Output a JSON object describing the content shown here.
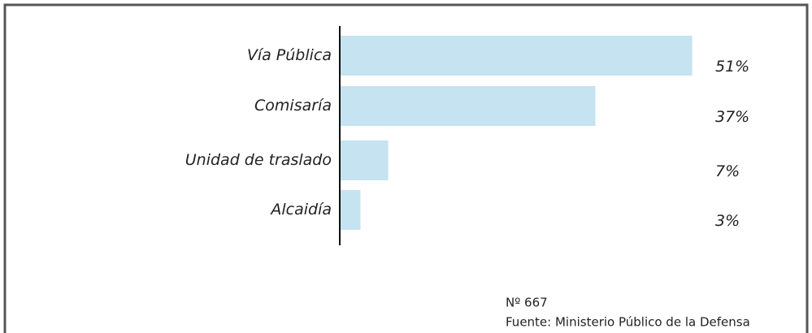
{
  "chart_data": {
    "type": "bar",
    "orientation": "horizontal",
    "categories": [
      "Vía Pública",
      "Comisaría",
      "Unidad de traslado",
      "Alcaidía"
    ],
    "values": [
      51,
      37,
      7,
      3
    ],
    "value_labels": [
      "51%",
      "37%",
      "7%",
      "3%"
    ],
    "color": "#c5e3f0",
    "notes": [
      "Nº 667",
      "Fuente: Ministerio Público de la Defensa"
    ]
  }
}
